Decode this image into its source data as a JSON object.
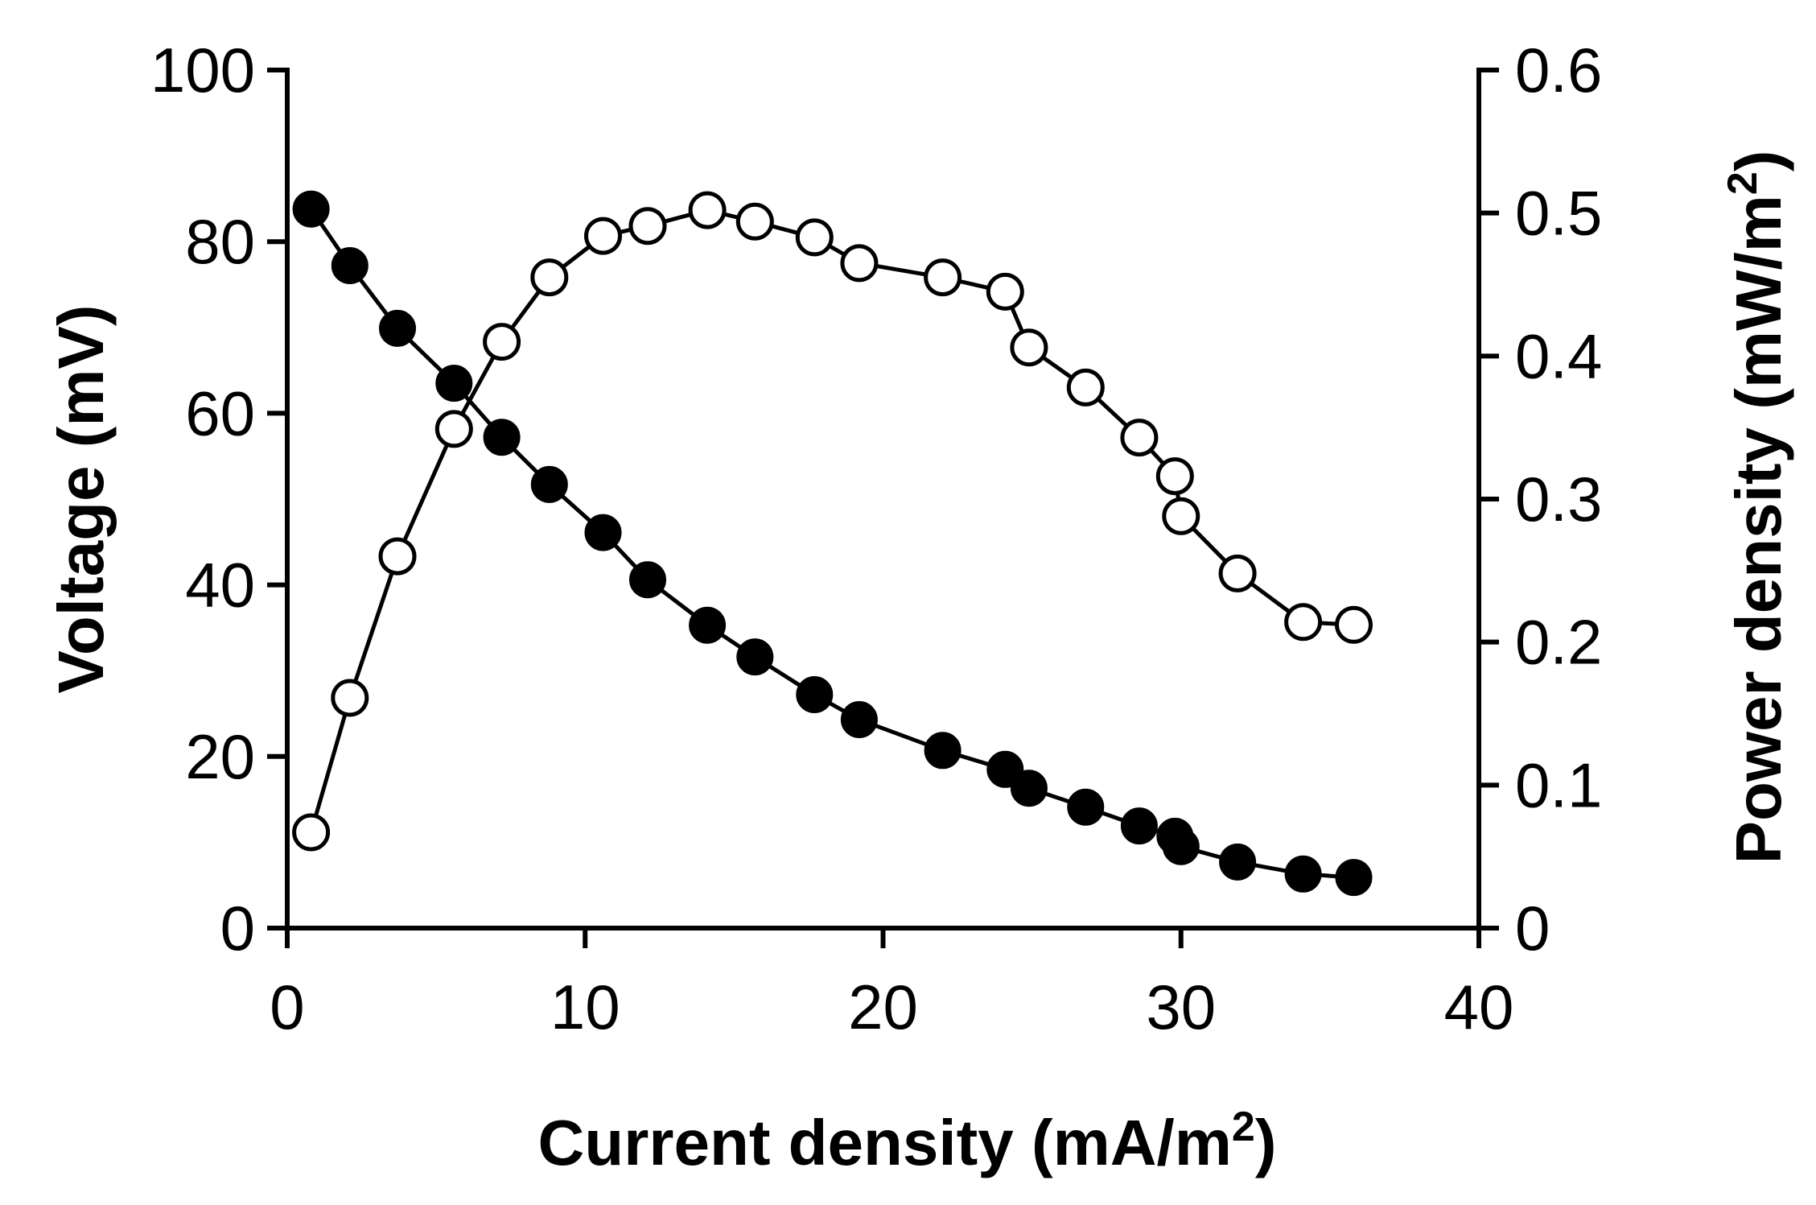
{
  "chart_data": {
    "type": "line",
    "title": "",
    "xlabel": {
      "text": "Current density (mA/m",
      "sup": "2",
      "suffix": ")"
    },
    "ylabel": {
      "text": "Voltage (mV)"
    },
    "y2label": {
      "text": "Power density (mW/m",
      "sup": "2",
      "suffix": ")"
    },
    "xlim": [
      0,
      40
    ],
    "ylim": [
      0,
      100
    ],
    "y2lim": [
      0,
      0.6
    ],
    "xticks": [
      0,
      10,
      20,
      30,
      40
    ],
    "xtick_labels": [
      "0",
      "10",
      "20",
      "30",
      "40"
    ],
    "yticks": [
      0,
      20,
      40,
      60,
      80,
      100
    ],
    "ytick_labels": [
      "0",
      "20",
      "40",
      "60",
      "80",
      "100"
    ],
    "y2ticks": [
      0,
      0.1,
      0.2,
      0.3,
      0.4,
      0.5,
      0.6
    ],
    "y2tick_labels": [
      "0",
      "0.1",
      "0.2",
      "0.3",
      "0.4",
      "0.5",
      "0.6"
    ],
    "grid": false,
    "series": [
      {
        "name": "Voltage",
        "axis": "left",
        "marker": "filled-circle",
        "color": "#000000",
        "x": [
          0.8,
          2.1,
          3.7,
          5.6,
          7.2,
          8.8,
          10.6,
          12.1,
          14.1,
          15.7,
          17.7,
          19.2,
          22.0,
          24.1,
          24.9,
          26.8,
          28.6,
          29.8,
          30.0,
          31.9,
          34.1,
          35.8
        ],
        "y": [
          83.8,
          77.2,
          69.9,
          63.5,
          57.2,
          51.7,
          46.1,
          40.6,
          35.3,
          31.6,
          27.2,
          24.3,
          20.7,
          18.5,
          16.3,
          14.1,
          11.9,
          10.7,
          9.5,
          7.7,
          6.3,
          5.9
        ]
      },
      {
        "name": "Power density",
        "axis": "right",
        "marker": "open-circle",
        "color": "#000000",
        "x": [
          0.8,
          2.1,
          3.7,
          5.6,
          7.2,
          8.8,
          10.6,
          12.1,
          14.1,
          15.7,
          17.7,
          19.2,
          22.0,
          24.1,
          24.9,
          26.8,
          28.6,
          29.8,
          30.0,
          31.9,
          34.1,
          35.8
        ],
        "y": [
          0.067,
          0.161,
          0.26,
          0.349,
          0.41,
          0.455,
          0.484,
          0.491,
          0.502,
          0.494,
          0.483,
          0.465,
          0.455,
          0.445,
          0.406,
          0.378,
          0.343,
          0.316,
          0.288,
          0.248,
          0.214,
          0.212
        ]
      }
    ]
  }
}
